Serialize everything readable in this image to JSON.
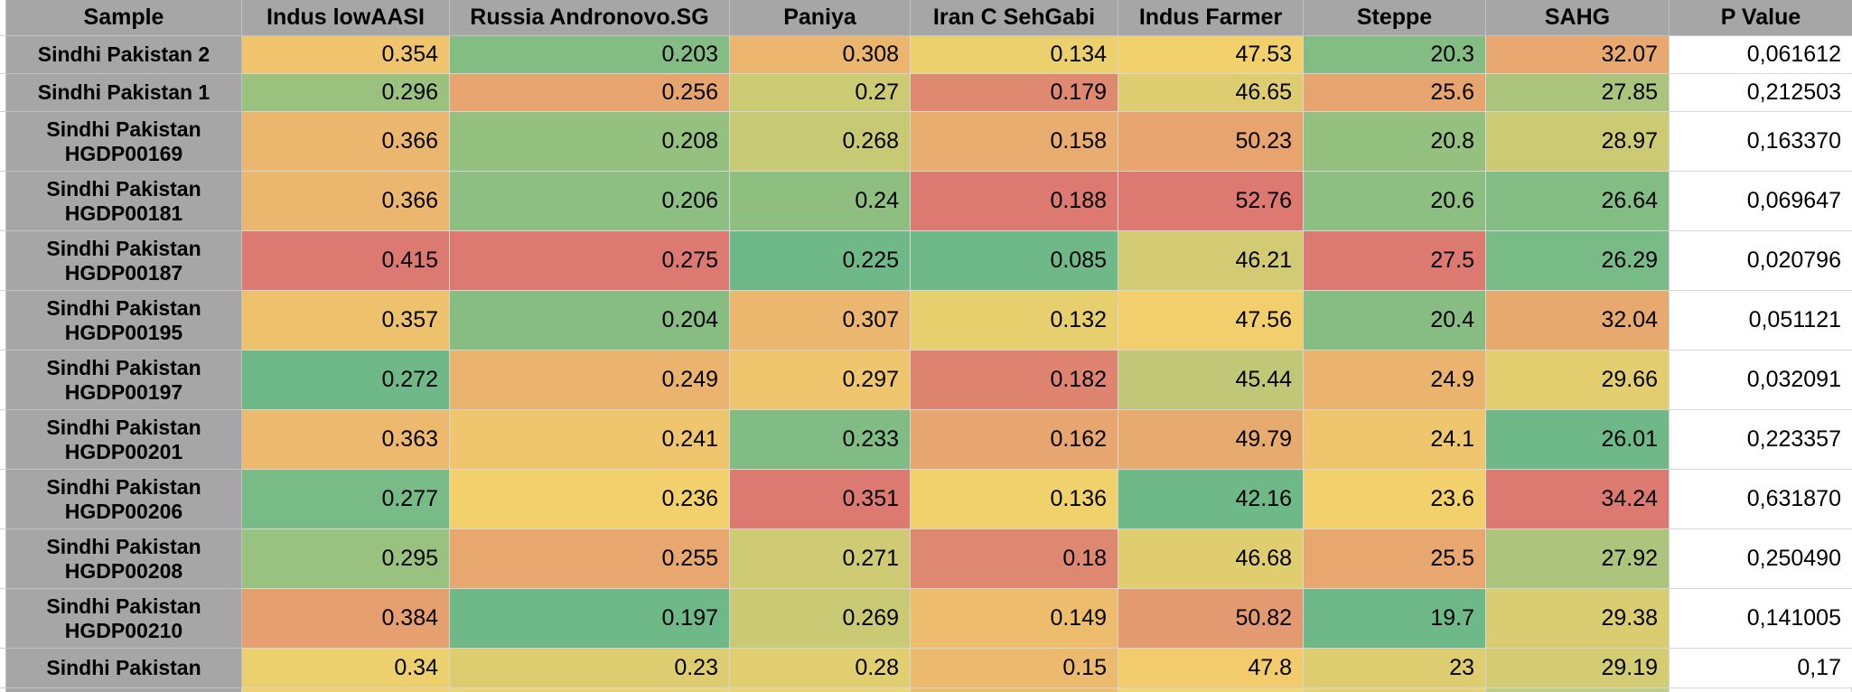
{
  "table": {
    "columns": [
      {
        "label": "Sample"
      },
      {
        "label": "Indus lowAASI"
      },
      {
        "label": "Russia Andronovo.SG"
      },
      {
        "label": "Paniya"
      },
      {
        "label": "Iran C SehGabi"
      },
      {
        "label": "Indus Farmer"
      },
      {
        "label": "Steppe"
      },
      {
        "label": "SAHG"
      },
      {
        "label": "P Value"
      }
    ],
    "rows": [
      {
        "sample": "Sindhi Pakistan 2",
        "values": [
          "0.354",
          "0.203",
          "0.308",
          "0.134",
          "47.53",
          "20.3",
          "32.07"
        ],
        "p_value": "0,061612"
      },
      {
        "sample": "Sindhi Pakistan 1",
        "values": [
          "0.296",
          "0.256",
          "0.27",
          "0.179",
          "46.65",
          "25.6",
          "27.85"
        ],
        "p_value": "0,212503"
      },
      {
        "sample": "Sindhi Pakistan HGDP00169",
        "values": [
          "0.366",
          "0.208",
          "0.268",
          "0.158",
          "50.23",
          "20.8",
          "28.97"
        ],
        "p_value": "0,163370"
      },
      {
        "sample": "Sindhi Pakistan HGDP00181",
        "values": [
          "0.366",
          "0.206",
          "0.24",
          "0.188",
          "52.76",
          "20.6",
          "26.64"
        ],
        "p_value": "0,069647"
      },
      {
        "sample": "Sindhi Pakistan HGDP00187",
        "values": [
          "0.415",
          "0.275",
          "0.225",
          "0.085",
          "46.21",
          "27.5",
          "26.29"
        ],
        "p_value": "0,020796"
      },
      {
        "sample": "Sindhi Pakistan HGDP00195",
        "values": [
          "0.357",
          "0.204",
          "0.307",
          "0.132",
          "47.56",
          "20.4",
          "32.04"
        ],
        "p_value": "0,051121"
      },
      {
        "sample": "Sindhi Pakistan HGDP00197",
        "values": [
          "0.272",
          "0.249",
          "0.297",
          "0.182",
          "45.44",
          "24.9",
          "29.66"
        ],
        "p_value": "0,032091"
      },
      {
        "sample": "Sindhi Pakistan HGDP00201",
        "values": [
          "0.363",
          "0.241",
          "0.233",
          "0.162",
          "49.79",
          "24.1",
          "26.01"
        ],
        "p_value": "0,223357"
      },
      {
        "sample": "Sindhi Pakistan HGDP00206",
        "values": [
          "0.277",
          "0.236",
          "0.351",
          "0.136",
          "42.16",
          "23.6",
          "34.24"
        ],
        "p_value": "0,631870"
      },
      {
        "sample": "Sindhi Pakistan HGDP00208",
        "values": [
          "0.295",
          "0.255",
          "0.271",
          "0.18",
          "46.68",
          "25.5",
          "27.92"
        ],
        "p_value": "0,250490"
      },
      {
        "sample": "Sindhi Pakistan HGDP00210",
        "values": [
          "0.384",
          "0.197",
          "0.269",
          "0.149",
          "50.82",
          "19.7",
          "29.38"
        ],
        "p_value": "0,141005"
      },
      {
        "sample": "Sindhi Pakistan",
        "values": [
          "0.34",
          "0.23",
          "0.28",
          "0.15",
          "47.8",
          "23",
          "29.19"
        ],
        "p_value": "0,17"
      }
    ],
    "partial_row_colors": [
      "#A6A6A6",
      "#F0D16E",
      "#EBD675",
      "#E9D573",
      "#EFBC6D",
      "#F0D570",
      "#E5D276",
      "#BECC86",
      "#FFFFFF"
    ],
    "conditional_format": {
      "low_color": "#6FB988",
      "mid_color": "#F2D16C",
      "high_color": "#DC7A72",
      "rule": "3-color scale per column: min=green, midpoint=yellow, max=red"
    },
    "colors": {
      "header_bg": "#A6A6A6",
      "sample_bg": "#A6A6A6",
      "p_value_bg": "#FFFFFF",
      "grid_line": "#D6D6D6",
      "header_grid_line": "#C2C2C2",
      "text": "#000000"
    }
  }
}
